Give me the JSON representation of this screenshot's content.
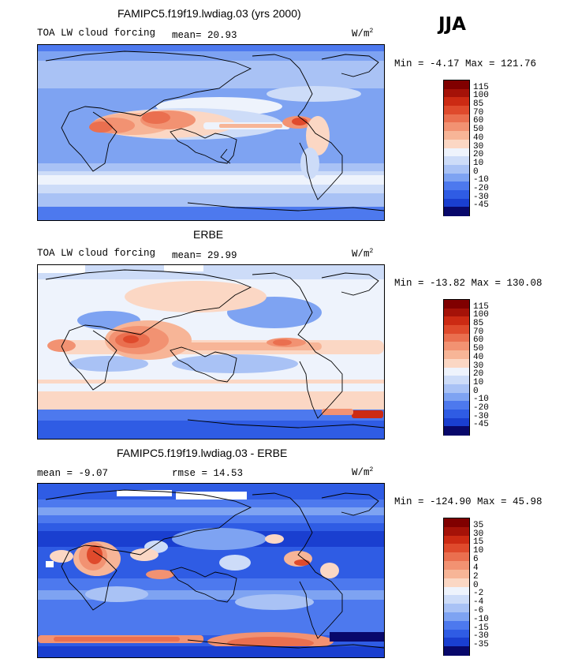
{
  "season": "JJA",
  "colors": {
    "n45": "#08086b",
    "n30": "#1a3fd0",
    "n20": "#2f5ce4",
    "n10": "#4d79ee",
    "z": "#7ea3f2",
    "p10": "#a9c2f5",
    "p20": "#cddcf8",
    "p30": "#eef3fc",
    "p40": "#fbd7c4",
    "p50": "#f7b597",
    "p60": "#f29272",
    "p70": "#ea6f4f",
    "p85": "#df4a2c",
    "p100": "#cc2a13",
    "p115": "#a51208",
    "top": "#800000",
    "land": "#000000"
  },
  "chart_data": [
    {
      "type": "heatmap",
      "title": "FAMIPC5.f19f19.lwdiag.03 (yrs 2000)",
      "left_label": "TOA LW cloud forcing",
      "stat1_label": "mean=",
      "stat1_value": "20.93",
      "units": "W/m",
      "units_exp": "2",
      "minmax": "Min =  -4.17 Max = 121.76",
      "colorbar_ticks": [
        "115",
        "100",
        "85",
        "70",
        "60",
        "50",
        "40",
        "30",
        "20",
        "10",
        "0",
        "-10",
        "-20",
        "-30",
        "-45"
      ]
    },
    {
      "type": "heatmap",
      "title": "ERBE",
      "left_label": "TOA LW cloud forcing",
      "stat1_label": "mean=",
      "stat1_value": "29.99",
      "units": "W/m",
      "units_exp": "2",
      "minmax": "Min = -13.82 Max = 130.08",
      "colorbar_ticks": [
        "115",
        "100",
        "85",
        "70",
        "60",
        "50",
        "40",
        "30",
        "20",
        "10",
        "0",
        "-10",
        "-20",
        "-30",
        "-45"
      ]
    },
    {
      "type": "heatmap",
      "title": "FAMIPC5.f19f19.lwdiag.03 - ERBE",
      "stat1_label": "mean =",
      "stat1_value": "-9.07",
      "stat2_label": "rmse =",
      "stat2_value": "14.53",
      "units": "W/m",
      "units_exp": "2",
      "minmax": "Min = -124.90 Max =  45.98",
      "colorbar_ticks": [
        "35",
        "30",
        "15",
        "10",
        "6",
        "4",
        "2",
        "0",
        "-2",
        "-4",
        "-6",
        "-10",
        "-15",
        "-30",
        "-35"
      ]
    }
  ]
}
